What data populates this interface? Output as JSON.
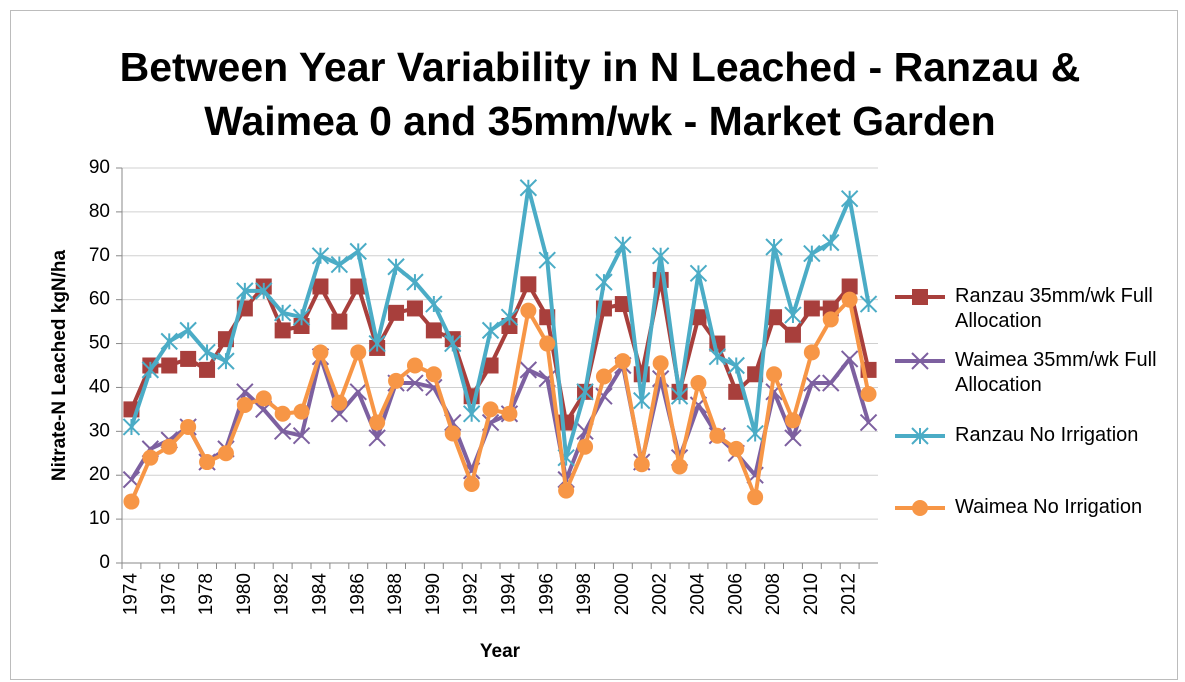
{
  "chart_data": {
    "type": "line",
    "title": "Between Year Variability in N Leached - Ranzau & Waimea 0 and 35mm/wk - Market Garden",
    "x_label": "Year",
    "y_label": "Nitrate-N Leached kgN/ha",
    "categories": [
      "1974",
      null,
      "1976",
      null,
      "1978",
      null,
      "1980",
      null,
      "1982",
      null,
      "1984",
      null,
      "1986",
      null,
      "1988",
      null,
      "1990",
      null,
      "1992",
      null,
      "1994",
      null,
      "1996",
      null,
      "1998",
      null,
      "2000",
      null,
      "2002",
      null,
      "2004",
      null,
      "2006",
      null,
      "2008",
      null,
      "2010",
      null,
      "2012",
      null
    ],
    "ylim": [
      0,
      90
    ],
    "yticks": [
      0,
      10,
      20,
      30,
      40,
      50,
      60,
      70,
      80,
      90
    ],
    "grid": true,
    "series": [
      {
        "name": "Ranzau 35mm/wk Full Allocation",
        "color": "#a83f3c",
        "marker": "square",
        "values": [
          35,
          45,
          45,
          46.5,
          44,
          51,
          58,
          63,
          53,
          54,
          63,
          55,
          63,
          49,
          57,
          58,
          53,
          51,
          38,
          45,
          54,
          63.5,
          56,
          32,
          39,
          58,
          59,
          43,
          64.5,
          39,
          56,
          50,
          39,
          43,
          56,
          52,
          58,
          58,
          63,
          44
        ]
      },
      {
        "name": "Waimea 35mm/wk Full Allocation",
        "color": "#7d60a0",
        "marker": "x",
        "values": [
          19,
          26,
          28,
          31,
          23,
          26,
          39,
          35,
          30,
          29,
          47,
          34,
          39,
          28.5,
          41,
          41,
          40,
          32,
          21,
          32,
          34,
          44,
          42,
          19,
          30,
          38,
          45,
          23,
          42,
          24,
          36,
          29,
          25,
          20,
          39,
          28.5,
          41,
          41,
          46.5,
          32
        ]
      },
      {
        "name": "Ranzau No Irrigation",
        "color": "#4bacc6",
        "marker": "star",
        "values": [
          31,
          44,
          50.5,
          53,
          48,
          46,
          62,
          62,
          57,
          56,
          70,
          68,
          71,
          50,
          67.5,
          64,
          59,
          50,
          34,
          53,
          56,
          85.5,
          69,
          24,
          39,
          64,
          72.5,
          37,
          70,
          38,
          66,
          47,
          45,
          29.5,
          72,
          56.5,
          70.5,
          73,
          83,
          59
        ]
      },
      {
        "name": "Waimea No Irrigation",
        "color": "#f79646",
        "marker": "circle",
        "values": [
          14,
          24,
          26.5,
          31,
          23,
          25,
          36,
          37.5,
          34,
          34.5,
          48,
          36.5,
          48,
          32,
          41.5,
          45,
          43,
          29.5,
          18,
          35,
          34,
          57.5,
          50,
          16.5,
          26.5,
          42.5,
          46,
          22.5,
          45.5,
          22,
          41,
          29,
          26,
          15,
          43,
          32.5,
          48,
          55.5,
          60,
          38.5
        ]
      }
    ]
  }
}
